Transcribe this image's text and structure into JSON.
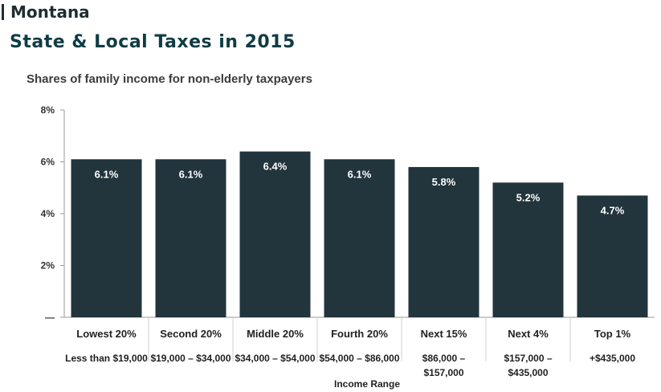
{
  "header": {
    "state": "Montana",
    "title": "State & Local Taxes in 2015"
  },
  "colors": {
    "bar": "#22343c",
    "grid": "#cfcfcf",
    "label_text": "#ffffff"
  },
  "chart_data": {
    "type": "bar",
    "title": "",
    "subtitle": "Shares of family income for non-elderly taxpayers",
    "xlabel": "Income Range",
    "ylabel": "",
    "ylim": [
      0,
      8
    ],
    "yticks": [
      {
        "value": 0,
        "label": "—"
      },
      {
        "value": 2,
        "label": "2%"
      },
      {
        "value": 4,
        "label": "4%"
      },
      {
        "value": 6,
        "label": "6%"
      },
      {
        "value": 8,
        "label": "8%"
      }
    ],
    "grid": false,
    "categories": [
      "Lowest 20%",
      "Second 20%",
      "Middle 20%",
      "Fourth 20%",
      "Next 15%",
      "Next 4%",
      "Top 1%"
    ],
    "ranges": [
      [
        "Less than $19,000"
      ],
      [
        "$19,000 – $34,000"
      ],
      [
        "$34,000 – $54,000"
      ],
      [
        "$54,000 – $86,000"
      ],
      [
        "$86,000 –",
        "$157,000"
      ],
      [
        "$157,000 –",
        "$435,000"
      ],
      [
        "+$435,000"
      ]
    ],
    "values": [
      6.1,
      6.1,
      6.4,
      6.1,
      5.8,
      5.2,
      4.7
    ],
    "value_labels": [
      "6.1%",
      "6.1%",
      "6.4%",
      "6.1%",
      "5.8%",
      "5.2%",
      "4.7%"
    ]
  }
}
